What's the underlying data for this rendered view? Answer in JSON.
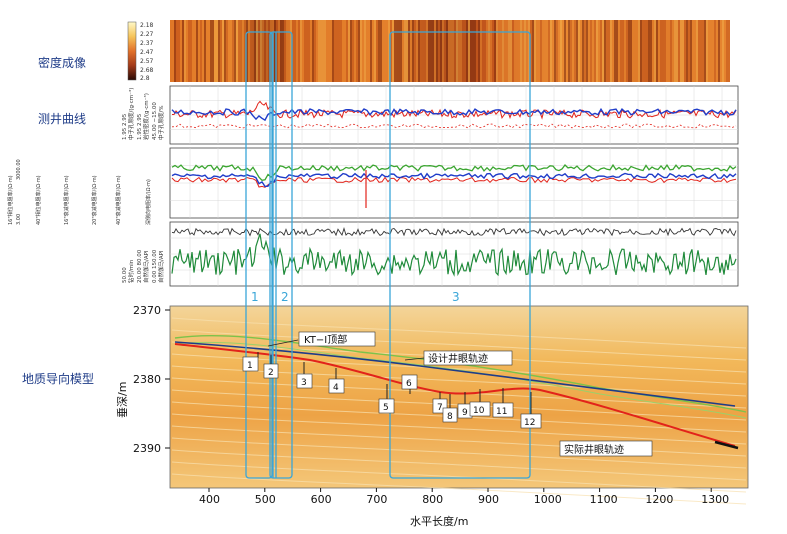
{
  "sections": {
    "density": "密度成像",
    "logs": "测井曲线",
    "model": "地质导向模型"
  },
  "colorbar": {
    "ticks": [
      "2.18",
      "2.27",
      "2.37",
      "2.47",
      "2.57",
      "2.68",
      "2.8"
    ]
  },
  "track2_labels": [
    "中子孔隙度/%",
    "45.00 −15.00",
    "岩性密度/(g·cm⁻³)",
    "1.95  2.95",
    "中子孔隙度/(g·cm⁻³)",
    "1.95  2.95"
  ],
  "track3_labels": [
    "16\"相位电阻率/(Ω·m)",
    "40\"相位电阻率/(Ω·m)",
    "16\"衰减电阻率/(Ω·m)",
    "20\"衰减电阻率/(Ω·m)",
    "40\"衰减电阻率/(Ω·m)",
    "深侧向电阻率/(Ω·m)"
  ],
  "track3_range": [
    "3.00",
    "3000.00"
  ],
  "track4_labels": [
    "自然伽马/API",
    "0.00  150.00",
    "自然伽马/API",
    "20.00  80.00",
    "钻时/min",
    "50.00"
  ],
  "zones": [
    "1",
    "2",
    "3"
  ],
  "model": {
    "yaxis_label": "垂深/m",
    "xaxis_label": "水平长度/m",
    "y_ticks": [
      "2370",
      "2380",
      "2390"
    ],
    "x_ticks": [
      "400",
      "500",
      "600",
      "700",
      "800",
      "900",
      "1000",
      "1100",
      "1200",
      "1300"
    ],
    "annotations": {
      "top": "KT−I顶部",
      "design": "设计井眼轨迹",
      "actual": "实际井眼轨迹"
    },
    "markers": [
      "1",
      "2",
      "3",
      "4",
      "5",
      "6",
      "7",
      "8",
      "9",
      "10",
      "11",
      "12"
    ]
  },
  "colors": {
    "zone_line": "#3aa6d8",
    "design": "#1f3c88",
    "actual": "#e2231a",
    "log_blue": "#1f3cc9",
    "log_red": "#e2231a",
    "log_green": "#2f8f2f"
  }
}
